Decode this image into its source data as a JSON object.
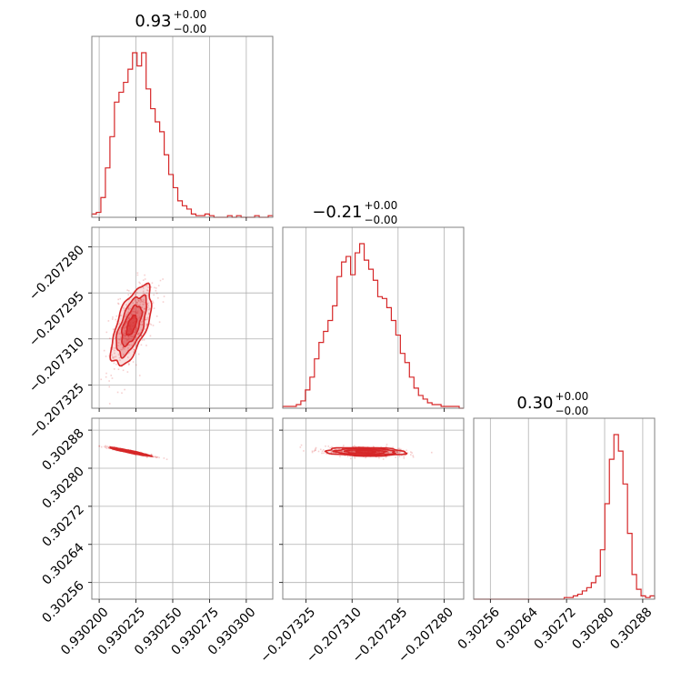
{
  "chart_data": {
    "type": "corner",
    "color": "#d62728",
    "parameters": [
      {
        "title_value": "0.93",
        "title_plus": "+0.00",
        "title_minus": "−0.00",
        "range": [
          0.930195,
          0.930318
        ],
        "ticks": [
          0.9302,
          0.930225,
          0.93025,
          0.930275,
          0.9303
        ],
        "tick_labels": [
          "0.930200",
          "0.930225",
          "0.930250",
          "0.930275",
          "0.930300"
        ],
        "hist_counts": [
          2,
          3,
          12,
          30,
          49,
          70,
          76,
          82,
          90,
          100,
          92,
          100,
          78,
          66,
          58,
          52,
          38,
          26,
          18,
          10,
          7,
          5,
          2,
          1,
          1,
          2,
          1,
          0,
          0,
          0,
          1,
          0,
          1,
          0,
          0,
          0,
          1,
          0,
          0,
          1
        ]
      },
      {
        "title_value": "−0.21",
        "title_plus": "+0.00",
        "title_minus": "−0.00",
        "range": [
          -0.2073326,
          -0.2072736
        ],
        "ticks": [
          -0.207325,
          -0.20731,
          -0.207295,
          -0.20728
        ],
        "tick_labels": [
          "−0.207325",
          "−0.207310",
          "−0.207295",
          "−0.207280"
        ],
        "hist_counts": [
          1,
          1,
          1,
          2,
          4,
          10,
          17,
          27,
          36,
          42,
          48,
          56,
          72,
          80,
          83,
          73,
          85,
          90,
          81,
          76,
          70,
          61,
          60,
          55,
          48,
          40,
          30,
          25,
          17,
          11,
          7,
          5,
          3,
          2,
          2,
          1,
          1,
          1,
          1,
          0
        ]
      },
      {
        "title_value": "0.30",
        "title_plus": "+0.00",
        "title_minus": "−0.00",
        "range": [
          0.302525,
          0.302905
        ],
        "ticks": [
          0.30256,
          0.30264,
          0.30272,
          0.3028,
          0.30288
        ],
        "tick_labels": [
          "0.30256",
          "0.30264",
          "0.30272",
          "0.30280",
          "0.30288"
        ],
        "hist_counts": [
          0,
          0,
          0,
          0,
          0,
          0,
          0,
          0,
          0,
          0,
          0,
          0,
          0,
          0,
          0,
          0,
          0,
          0,
          0,
          0,
          1,
          1,
          2,
          3,
          5,
          7,
          10,
          14,
          30,
          58,
          85,
          100,
          90,
          70,
          40,
          15,
          6,
          2,
          1,
          2
        ]
      }
    ],
    "pairs": [
      {
        "x_param": 0,
        "y_param": 1,
        "center": [
          0.930222,
          -0.2073056
        ],
        "sigma_x": 6.8e-06,
        "sigma_y": 6.5e-06,
        "rho": 0.62,
        "contour_levels_sigma": [
          0.5,
          1.0,
          1.5,
          2.0
        ]
      },
      {
        "x_param": 0,
        "y_param": 2,
        "center": [
          0.930221,
          0.3028346
        ],
        "sigma_x": 6.8e-06,
        "sigma_y": 4.5e-06,
        "rho": -0.96,
        "contour_levels_sigma": [
          0.5,
          1.0,
          1.5,
          2.0
        ]
      },
      {
        "x_param": 1,
        "y_param": 2,
        "center": [
          -0.2073056,
          0.3028346
        ],
        "sigma_x": 6.5e-06,
        "sigma_y": 4.5e-06,
        "rho": -0.15,
        "contour_levels_sigma": [
          0.5,
          1.0,
          1.5,
          2.0
        ]
      }
    ]
  }
}
